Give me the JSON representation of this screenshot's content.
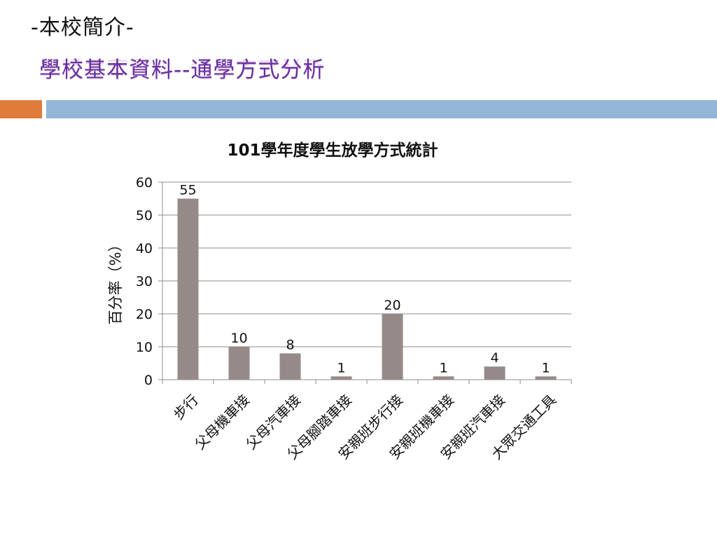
{
  "slide": {
    "header_title": "-本校簡介-",
    "subtitle": "學校基本資料--通學方式分析"
  },
  "colors": {
    "accent_orange": "#e07b39",
    "accent_blue": "#93b6d6",
    "subtitle_purple": "#6b2fa0",
    "bar_fill": "#968a89"
  },
  "chart_data": {
    "type": "bar",
    "title": "101學年度學生放學方式統計",
    "xlabel": "",
    "ylabel": "百分率（%）",
    "ylim": [
      0,
      60
    ],
    "yticks": [
      0,
      10,
      20,
      30,
      40,
      50,
      60
    ],
    "grid": true,
    "categories": [
      "步行",
      "父母機車接",
      "父母汽車接",
      "父母腳踏車接",
      "安親班步行接",
      "安親班機車接",
      "安親班汽車接",
      "大眾交通工具"
    ],
    "values": [
      55,
      10,
      8,
      1,
      20,
      1,
      4,
      1
    ],
    "data_labels": [
      "55",
      "10",
      "8",
      "1",
      "20",
      "1",
      "4",
      "1"
    ]
  }
}
